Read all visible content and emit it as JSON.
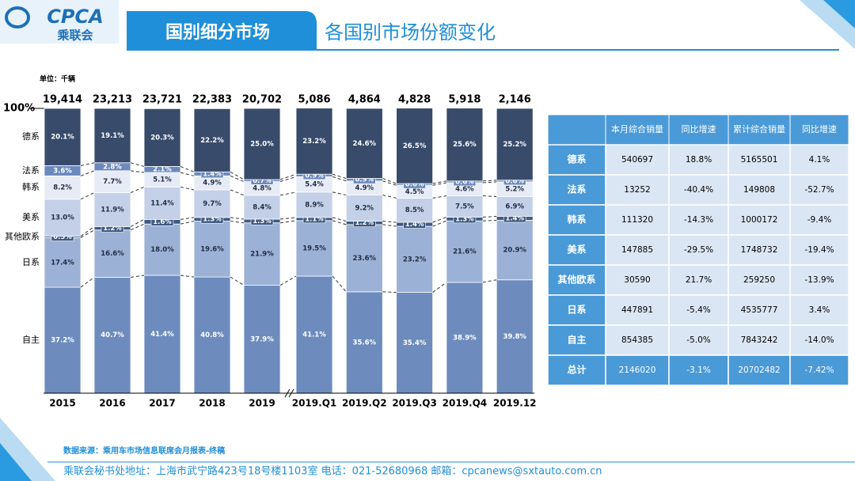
{
  "header": {
    "logo": "CPCA",
    "logo_sub": "乘联会",
    "section": "国别细分市场",
    "title": "各国别市场份额变化"
  },
  "unit": "单位：千辆",
  "chart_data": {
    "type": "stacked_bar",
    "categories": [
      "2015",
      "2016",
      "2017",
      "2018",
      "2019",
      "2019.Q1",
      "2019.Q2",
      "2019.Q3",
      "2019.Q4",
      "2019.12"
    ],
    "ylim": [
      0,
      100
    ],
    "yticks": [
      {
        "value": 100,
        "label": "100%"
      }
    ],
    "totals": {
      "values": [
        19414,
        23213,
        23721,
        22383,
        20702,
        5086,
        4864,
        4828,
        5918,
        2146
      ],
      "value_labels": [
        "19,414",
        "23,213",
        "23,721",
        "22,383",
        "20,702",
        "5,086",
        "4,864",
        "4,828",
        "5,918",
        "2,146"
      ]
    },
    "series": [
      {
        "name": "自主",
        "color": "#6d8cbd",
        "values": [
          37.2,
          40.7,
          41.4,
          40.8,
          37.9,
          41.1,
          35.6,
          35.4,
          38.9,
          39.8
        ],
        "value_labels": [
          "37.2%",
          "40.7%",
          "41.4%",
          "40.8%",
          "37.9%",
          "41.1%",
          "35.6%",
          "35.4%",
          "38.9%",
          "39.8%"
        ]
      },
      {
        "name": "日系",
        "color": "#9cb1d6",
        "values": [
          17.4,
          16.6,
          18,
          19.6,
          21.9,
          19.5,
          23.6,
          23.2,
          21.6,
          20.9
        ],
        "value_labels": [
          "17.4%",
          "16.6%",
          "18.0%",
          "19.6%",
          "21.9%",
          "19.5%",
          "23.6%",
          "23.2%",
          "21.6%",
          "20.9%"
        ]
      },
      {
        "name": "其他欧系",
        "color": "#3f5a82",
        "values": [
          0.5,
          1.2,
          1.6,
          1.3,
          1.3,
          1.1,
          1.2,
          1.4,
          1.3,
          1.4
        ],
        "value_labels": [
          "0.5%",
          "1.2%",
          "1.6%",
          "1.3%",
          "1.3%",
          "1.1%",
          "1.2%",
          "1.4%",
          "1.3%",
          "1.4%"
        ]
      },
      {
        "name": "美系",
        "color": "#c4d0e7",
        "values": [
          13,
          11.9,
          11.4,
          9.7,
          8.4,
          8.9,
          9.2,
          8.5,
          7.5,
          6.9
        ],
        "value_labels": [
          "13.0%",
          "11.9%",
          "11.4%",
          "9.7%",
          "8.4%",
          "8.9%",
          "9.2%",
          "8.5%",
          "7.5%",
          "6.9%"
        ]
      },
      {
        "name": "韩系",
        "color": "#e6ebf5",
        "values": [
          8.2,
          7.7,
          5.1,
          4.9,
          4.8,
          5.4,
          4.9,
          4.5,
          4.6,
          5.2
        ],
        "value_labels": [
          "8.2%",
          "7.7%",
          "5.1%",
          "4.9%",
          "4.8%",
          "5.4%",
          "4.9%",
          "4.5%",
          "4.6%",
          "5.2%"
        ]
      },
      {
        "name": "法系",
        "color": "#6b89bd",
        "values": [
          3.6,
          2.8,
          2.1,
          1.4,
          0.7,
          0.9,
          0.9,
          0.6,
          0.6,
          0.6
        ],
        "value_labels": [
          "3.6%",
          "2.8%",
          "2.1%",
          "1.4%",
          "0.7%",
          "0.9%",
          "0.9%",
          "0.6%",
          "0.6%",
          "0.6%"
        ]
      },
      {
        "name": "德系",
        "color": "#384b6b",
        "values": [
          20.1,
          19.1,
          20.3,
          22.2,
          25,
          23.2,
          24.6,
          26.5,
          25.6,
          25.2
        ],
        "value_labels": [
          "20.1%",
          "19.1%",
          "20.3%",
          "22.2%",
          "25.0%",
          "23.2%",
          "24.6%",
          "26.5%",
          "25.6%",
          "25.2%"
        ]
      }
    ]
  },
  "table": {
    "header": [
      "本月综合销量",
      "同比增速",
      "累计综合销量",
      "同比增速"
    ],
    "rows": [
      [
        "德系",
        "540697",
        "18.8%",
        "5165501",
        "4.1%"
      ],
      [
        "法系",
        "13252",
        "-40.4%",
        "149808",
        "-52.7%"
      ],
      [
        "韩系",
        "111320",
        "-14.3%",
        "1000172",
        "-9.4%"
      ],
      [
        "美系",
        "147885",
        "-29.5%",
        "1748732",
        "-19.4%"
      ],
      [
        "其他欧系",
        "30590",
        "21.7%",
        "259250",
        "-13.9%"
      ],
      [
        "日系",
        "447891",
        "-5.4%",
        "4535777",
        "3.4%"
      ],
      [
        "自主",
        "854385",
        "-5.0%",
        "7843242",
        "-14.0%"
      ],
      [
        "总计",
        "2146020",
        "-3.1%",
        "20702482",
        "-7.42%"
      ]
    ]
  },
  "footer": {
    "source": "数据来源：乘用车市场信息联席会月报表-终稿",
    "address": "乘联会秘书处地址：上海市武宁路423号18号楼1103室  电话：021-52680968  邮箱：cpcanews@sxtauto.com.cn"
  }
}
